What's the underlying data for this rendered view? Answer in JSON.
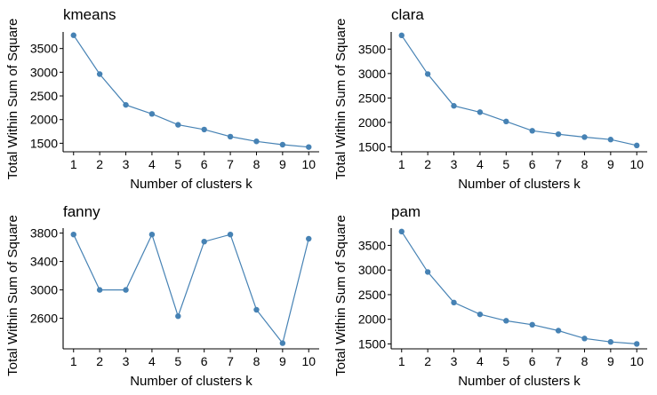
{
  "style": {
    "line_color": "#4682b4",
    "point_color": "#4682b4",
    "axis_color": "#000000",
    "background": "#ffffff"
  },
  "chart_data": [
    {
      "type": "line",
      "title": "kmeans",
      "xlabel": "Number of clusters k",
      "ylabel": "Total Within Sum of Square",
      "x": [
        1,
        2,
        3,
        4,
        5,
        6,
        7,
        8,
        9,
        10
      ],
      "values": [
        3780,
        2960,
        2310,
        2120,
        1890,
        1790,
        1640,
        1540,
        1470,
        1420
      ],
      "xlim": [
        0.6,
        10.4
      ],
      "ylim": [
        1320,
        3850
      ],
      "yticks": [
        1500,
        2000,
        2500,
        3000,
        3500
      ],
      "grid": false,
      "legend": "none"
    },
    {
      "type": "line",
      "title": "clara",
      "xlabel": "Number of clusters k",
      "ylabel": "Total Within Sum of Square",
      "x": [
        1,
        2,
        3,
        4,
        5,
        6,
        7,
        8,
        9,
        10
      ],
      "values": [
        3780,
        2990,
        2340,
        2210,
        2020,
        1830,
        1760,
        1700,
        1650,
        1530
      ],
      "xlim": [
        0.6,
        10.4
      ],
      "ylim": [
        1400,
        3850
      ],
      "yticks": [
        1500,
        2000,
        2500,
        3000,
        3500
      ],
      "grid": false,
      "legend": "none"
    },
    {
      "type": "line",
      "title": "fanny",
      "xlabel": "Number of clusters k",
      "ylabel": "Total Within Sum of Square",
      "x": [
        1,
        2,
        3,
        4,
        5,
        6,
        7,
        8,
        9,
        10
      ],
      "values": [
        3780,
        3000,
        3000,
        3780,
        2630,
        3680,
        3780,
        2720,
        2250,
        3720
      ],
      "xlim": [
        0.6,
        10.4
      ],
      "ylim": [
        2170,
        3870
      ],
      "yticks": [
        2600,
        3000,
        3400,
        3800
      ],
      "grid": false,
      "legend": "none"
    },
    {
      "type": "line",
      "title": "pam",
      "xlabel": "Number of clusters k",
      "ylabel": "Total Within Sum of Square",
      "x": [
        1,
        2,
        3,
        4,
        5,
        6,
        7,
        8,
        9,
        10
      ],
      "values": [
        3780,
        2960,
        2340,
        2100,
        1970,
        1890,
        1770,
        1610,
        1540,
        1500
      ],
      "xlim": [
        0.6,
        10.4
      ],
      "ylim": [
        1400,
        3850
      ],
      "yticks": [
        1500,
        2000,
        2500,
        3000,
        3500
      ],
      "grid": false,
      "legend": "none"
    }
  ]
}
